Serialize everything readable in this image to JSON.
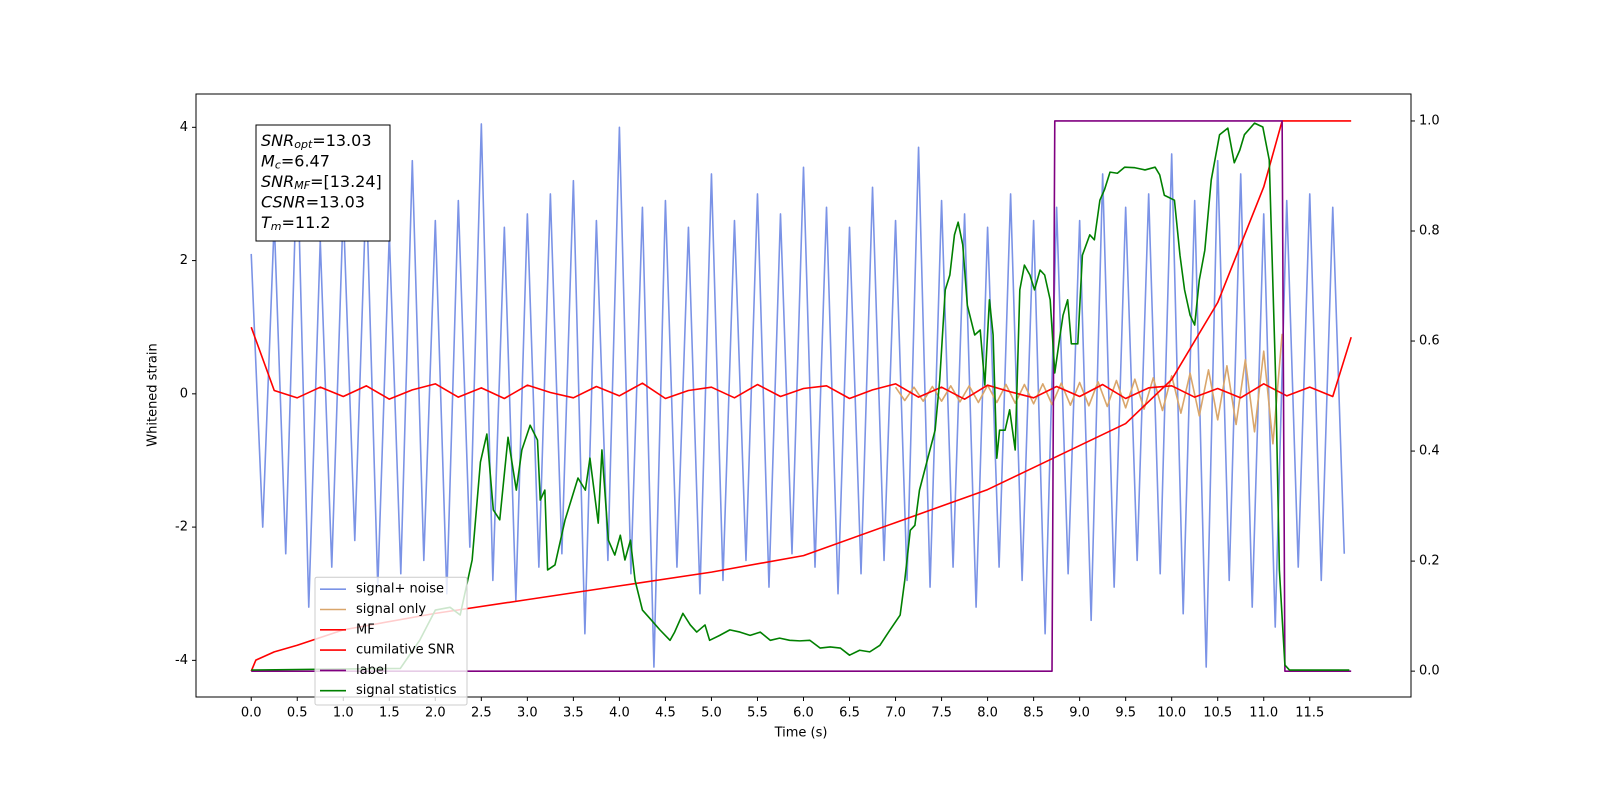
{
  "chart_data": {
    "type": "line",
    "xlabel": "Time (s)",
    "ylabel": "Whitened strain",
    "xlim": [
      -0.6,
      12.6
    ],
    "ylim": [
      -4.55,
      4.5
    ],
    "y2lim": [
      -0.047,
      1.049
    ],
    "xticks": [
      {
        "value": 0,
        "label": "0.0"
      },
      0.5,
      {
        "value": 1,
        "label": "1.0"
      },
      1.5,
      {
        "value": 2,
        "label": "2.0"
      },
      2.5,
      {
        "value": 3,
        "label": "3.0"
      },
      3.5,
      {
        "value": 4,
        "label": "4.0"
      },
      4.5,
      {
        "value": 5,
        "label": "5.0"
      },
      5.5,
      {
        "value": 6,
        "label": "6.0"
      },
      6.5,
      {
        "value": 7,
        "label": "7.0"
      },
      7.5,
      {
        "value": 8,
        "label": "8.0"
      },
      8.5,
      {
        "value": 9,
        "label": "9.0"
      },
      9.5,
      {
        "value": 10,
        "label": "10.0"
      },
      10.5,
      {
        "value": 11,
        "label": "11.0"
      },
      11.5
    ],
    "yticks": [
      -4,
      -2,
      0,
      2,
      4
    ],
    "y2ticks": [
      {
        "value": 0,
        "label": "0.0"
      },
      0.2,
      0.4,
      0.6,
      0.8,
      {
        "value": 1,
        "label": "1.0"
      }
    ],
    "grid": false,
    "legend": "lower left",
    "annotation": [
      {
        "symbol": "SNR",
        "subscript": "opt",
        "text": "=13.03"
      },
      {
        "symbol": "M",
        "subscript": "c",
        "text": "=6.47"
      },
      {
        "symbol": "SNR",
        "subscript": "MF",
        "text": "=[13.24]"
      },
      {
        "symbol": "CSNR",
        "text": "=13.03"
      },
      {
        "symbol": "T",
        "subscript": "m",
        "text": "=11.2"
      }
    ],
    "series": [
      {
        "name": "signal+ noise",
        "color": "#7b93e6",
        "x": [
          0,
          0.125,
          0.25,
          0.375,
          0.5,
          0.625,
          0.75,
          0.875,
          1,
          1.125,
          1.25,
          1.375,
          1.5,
          1.625,
          1.75,
          1.875,
          2,
          2.125,
          2.25,
          2.375,
          2.5,
          2.625,
          2.75,
          2.875,
          3,
          3.125,
          3.25,
          3.375,
          3.5,
          3.625,
          3.75,
          3.875,
          4,
          4.125,
          4.25,
          4.375,
          4.5,
          4.625,
          4.75,
          4.875,
          5,
          5.125,
          5.25,
          5.375,
          5.5,
          5.625,
          5.75,
          5.875,
          6,
          6.125,
          6.25,
          6.375,
          6.5,
          6.625,
          6.75,
          6.875,
          7,
          7.125,
          7.25,
          7.375,
          7.5,
          7.625,
          7.75,
          7.875,
          8,
          8.125,
          8.25,
          8.375,
          8.5,
          8.625,
          8.75,
          8.875,
          9,
          9.125,
          9.25,
          9.375,
          9.5,
          9.625,
          9.75,
          9.875,
          10,
          10.125,
          10.25,
          10.375,
          10.5,
          10.625,
          10.75,
          10.875,
          11,
          11.125,
          11.25,
          11.375,
          11.5,
          11.625,
          11.75,
          11.875
        ],
        "values": [
          2.1,
          -2.0,
          2.6,
          -2.4,
          3.6,
          -3.2,
          2.3,
          -2.6,
          2.8,
          -2.2,
          3.1,
          -2.9,
          2.4,
          -2.7,
          3.5,
          -2.5,
          2.6,
          -3.0,
          2.9,
          -2.3,
          4.05,
          -2.8,
          2.5,
          -3.1,
          2.7,
          -2.6,
          3.0,
          -2.4,
          3.2,
          -3.6,
          2.6,
          -2.5,
          4.0,
          -2.7,
          2.8,
          -4.1,
          2.9,
          -2.6,
          2.5,
          -3.0,
          3.3,
          -2.8,
          2.6,
          -2.5,
          3.0,
          -2.9,
          2.7,
          -2.4,
          3.4,
          -2.6,
          2.8,
          -3.0,
          2.5,
          -2.7,
          3.1,
          -2.5,
          2.6,
          -2.8,
          3.7,
          -2.9,
          2.9,
          -2.6,
          2.7,
          -3.2,
          2.5,
          -2.6,
          3.0,
          -2.8,
          2.6,
          -3.6,
          2.8,
          -2.7,
          2.6,
          -3.4,
          3.3,
          -2.9,
          2.8,
          -2.5,
          3.0,
          -2.7,
          3.6,
          -3.3,
          2.9,
          -4.1,
          3.5,
          -2.8,
          3.3,
          -3.2,
          2.7,
          -3.5,
          2.9,
          -2.6,
          3.0,
          -2.8,
          2.8,
          -2.4
        ]
      },
      {
        "name": "signal only",
        "color": "#d9a66b",
        "x": [
          7,
          7.1,
          7.2,
          7.3,
          7.4,
          7.5,
          7.6,
          7.7,
          7.8,
          7.9,
          8,
          8.1,
          8.2,
          8.3,
          8.4,
          8.5,
          8.6,
          8.7,
          8.8,
          8.9,
          9,
          9.1,
          9.2,
          9.3,
          9.4,
          9.5,
          9.6,
          9.7,
          9.8,
          9.9,
          10,
          10.1,
          10.2,
          10.3,
          10.4,
          10.5,
          10.6,
          10.7,
          10.8,
          10.9,
          11,
          11.1,
          11.2
        ],
        "values": [
          0.1,
          -0.1,
          0.1,
          -0.11,
          0.11,
          -0.11,
          0.12,
          -0.12,
          0.12,
          -0.13,
          0.13,
          -0.13,
          0.14,
          -0.14,
          0.14,
          -0.15,
          0.15,
          -0.16,
          0.16,
          -0.17,
          0.17,
          -0.18,
          0.18,
          -0.19,
          0.2,
          -0.21,
          0.22,
          -0.23,
          0.24,
          -0.25,
          0.27,
          -0.29,
          0.31,
          -0.33,
          0.36,
          -0.39,
          0.42,
          -0.46,
          0.51,
          -0.57,
          0.64,
          -0.75,
          0.9
        ]
      },
      {
        "name": "MF",
        "color": "#ff0000",
        "x": [
          0,
          0.25,
          0.5,
          0.75,
          1,
          1.25,
          1.5,
          1.75,
          2,
          2.25,
          2.5,
          2.75,
          3,
          3.25,
          3.5,
          3.75,
          4,
          4.25,
          4.5,
          4.75,
          5,
          5.25,
          5.5,
          5.75,
          6,
          6.25,
          6.5,
          6.75,
          7,
          7.25,
          7.5,
          7.75,
          8,
          8.25,
          8.5,
          8.75,
          9,
          9.25,
          9.5,
          9.75,
          10,
          10.25,
          10.5,
          10.75,
          11,
          11.25,
          11.5,
          11.75,
          11.95
        ],
        "values": [
          1.0,
          0.05,
          -0.06,
          0.1,
          -0.04,
          0.12,
          -0.08,
          0.06,
          0.15,
          -0.05,
          0.09,
          -0.07,
          0.13,
          0.02,
          -0.06,
          0.11,
          -0.03,
          0.16,
          -0.07,
          0.05,
          0.1,
          -0.06,
          0.14,
          -0.04,
          0.08,
          0.12,
          -0.07,
          0.06,
          0.15,
          -0.05,
          0.1,
          -0.08,
          0.13,
          0.03,
          -0.06,
          0.11,
          -0.04,
          0.14,
          -0.07,
          0.09,
          0.12,
          -0.05,
          0.08,
          -0.06,
          0.15,
          -0.03,
          0.1,
          -0.04,
          0.85
        ]
      },
      {
        "name": "cumilative SNR",
        "color": "#ff0000",
        "axis": "y2",
        "x": [
          0,
          0.05,
          0.25,
          0.5,
          1,
          2,
          3,
          4,
          5,
          6,
          7,
          8,
          8.5,
          9,
          9.5,
          10,
          10.5,
          11,
          11.2,
          11.95
        ],
        "values": [
          0,
          0.02,
          0.035,
          0.047,
          0.075,
          0.105,
          0.13,
          0.155,
          0.18,
          0.21,
          0.27,
          0.33,
          0.37,
          0.41,
          0.45,
          0.53,
          0.67,
          0.88,
          1.0,
          1.0
        ]
      },
      {
        "name": "label",
        "color": "#800080",
        "axis": "y2",
        "x": [
          0,
          8.7,
          8.73,
          11.2,
          11.23,
          11.95
        ],
        "values": [
          0,
          0,
          1,
          1,
          0,
          0
        ]
      },
      {
        "name": "signal statistics",
        "color": "#008000",
        "axis": "y2",
        "x": [
          0,
          1.62,
          1.83,
          2.0,
          2.16,
          2.27,
          2.4,
          2.49,
          2.56,
          2.63,
          2.7,
          2.79,
          2.88,
          2.94,
          3.03,
          3.11,
          3.14,
          3.19,
          3.22,
          3.3,
          3.41,
          3.55,
          3.63,
          3.68,
          3.77,
          3.81,
          3.88,
          3.95,
          4.01,
          4.06,
          4.12,
          4.17,
          4.25,
          4.33,
          4.44,
          4.55,
          4.6,
          4.69,
          4.77,
          4.84,
          4.93,
          4.98,
          5.09,
          5.2,
          5.31,
          5.42,
          5.53,
          5.64,
          5.74,
          5.85,
          5.96,
          6.07,
          6.18,
          6.29,
          6.4,
          6.5,
          6.61,
          6.72,
          6.83,
          6.94,
          7.05,
          7.1,
          7.16,
          7.21,
          7.26,
          7.43,
          7.48,
          7.54,
          7.59,
          7.64,
          7.68,
          7.73,
          7.78,
          7.86,
          7.92,
          7.97,
          8.02,
          8.06,
          8.1,
          8.13,
          8.19,
          8.24,
          8.3,
          8.35,
          8.4,
          8.46,
          8.51,
          8.57,
          8.62,
          8.68,
          8.73,
          8.78,
          8.82,
          8.87,
          8.91,
          8.98,
          9.03,
          9.11,
          9.16,
          9.22,
          9.27,
          9.33,
          9.41,
          9.49,
          9.6,
          9.71,
          9.82,
          9.87,
          9.92,
          10.03,
          10.09,
          10.14,
          10.2,
          10.25,
          10.3,
          10.36,
          10.43,
          10.52,
          10.61,
          10.68,
          10.74,
          10.79,
          10.9,
          10.99,
          11.06,
          11.13,
          11.17,
          11.23,
          11.28,
          11.93
        ],
        "values": [
          0.002,
          0.005,
          0.056,
          0.111,
          0.116,
          0.102,
          0.202,
          0.38,
          0.431,
          0.293,
          0.275,
          0.425,
          0.329,
          0.402,
          0.447,
          0.42,
          0.311,
          0.329,
          0.184,
          0.193,
          0.275,
          0.351,
          0.329,
          0.387,
          0.269,
          0.402,
          0.238,
          0.211,
          0.247,
          0.202,
          0.238,
          0.165,
          0.111,
          0.096,
          0.075,
          0.056,
          0.071,
          0.105,
          0.084,
          0.071,
          0.084,
          0.056,
          0.065,
          0.075,
          0.071,
          0.065,
          0.071,
          0.056,
          0.06,
          0.056,
          0.055,
          0.056,
          0.042,
          0.044,
          0.042,
          0.029,
          0.038,
          0.035,
          0.047,
          0.075,
          0.102,
          0.165,
          0.256,
          0.265,
          0.329,
          0.438,
          0.529,
          0.693,
          0.72,
          0.793,
          0.816,
          0.775,
          0.665,
          0.611,
          0.62,
          0.52,
          0.675,
          0.611,
          0.387,
          0.438,
          0.438,
          0.475,
          0.402,
          0.693,
          0.738,
          0.72,
          0.693,
          0.729,
          0.72,
          0.675,
          0.542,
          0.602,
          0.647,
          0.675,
          0.595,
          0.595,
          0.756,
          0.793,
          0.784,
          0.856,
          0.875,
          0.907,
          0.905,
          0.916,
          0.915,
          0.911,
          0.916,
          0.902,
          0.865,
          0.856,
          0.756,
          0.693,
          0.647,
          0.629,
          0.711,
          0.765,
          0.893,
          0.975,
          0.987,
          0.924,
          0.947,
          0.975,
          0.996,
          0.989,
          0.929,
          0.529,
          0.184,
          0.011,
          0.002,
          0.002
        ]
      }
    ]
  }
}
